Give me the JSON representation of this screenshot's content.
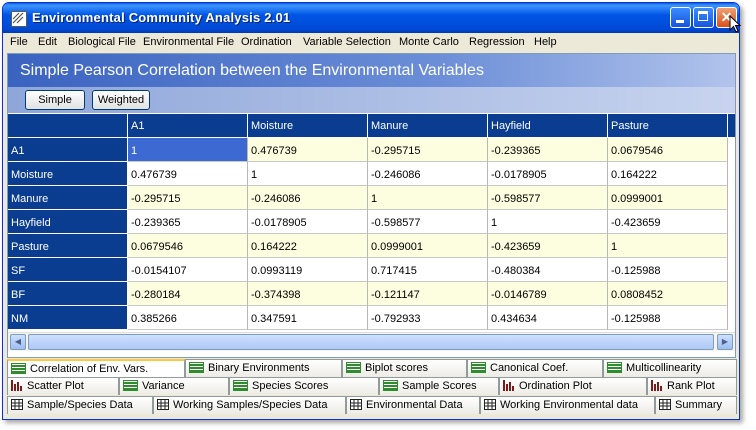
{
  "window": {
    "title": "Environmental Community Analysis 2.01"
  },
  "menu": [
    "File",
    "Edit",
    "Biological File",
    "Environmental File",
    "Ordination",
    "Variable Selection",
    "Monte Carlo",
    "Regression",
    "Help"
  ],
  "panel": {
    "title": "Simple Pearson Correlation between the Environmental Variables"
  },
  "toolbar": {
    "simple_label": "Simple",
    "weighted_label": "Weighted"
  },
  "table": {
    "columns": [
      "A1",
      "Moisture",
      "Manure",
      "Hayfield",
      "Pasture"
    ],
    "rows": [
      {
        "label": "A1",
        "values": [
          "1",
          "0.476739",
          "-0.295715",
          "-0.239365",
          "0.0679546"
        ]
      },
      {
        "label": "Moisture",
        "values": [
          "0.476739",
          "1",
          "-0.246086",
          "-0.0178905",
          "0.164222"
        ]
      },
      {
        "label": "Manure",
        "values": [
          "-0.295715",
          "-0.246086",
          "1",
          "-0.598577",
          "0.0999001"
        ]
      },
      {
        "label": "Hayfield",
        "values": [
          "-0.239365",
          "-0.0178905",
          "-0.598577",
          "1",
          "-0.423659"
        ]
      },
      {
        "label": "Pasture",
        "values": [
          "0.0679546",
          "0.164222",
          "0.0999001",
          "-0.423659",
          "1"
        ]
      },
      {
        "label": "SF",
        "values": [
          "-0.0154107",
          "0.0993119",
          "0.717415",
          "-0.480384",
          "-0.125988"
        ]
      },
      {
        "label": "BF",
        "values": [
          "-0.280184",
          "-0.374398",
          "-0.121147",
          "-0.0146789",
          "0.0808452"
        ]
      },
      {
        "label": "NM",
        "values": [
          "0.385266",
          "0.347591",
          "-0.792933",
          "0.434634",
          "-0.125988"
        ]
      }
    ]
  },
  "tabs": {
    "row1": [
      {
        "label": "Correlation of Env. Vars.",
        "icon": "lines-icon",
        "active": true
      },
      {
        "label": "Binary Environments",
        "icon": "lines-icon"
      },
      {
        "label": "Biplot scores",
        "icon": "lines-icon"
      },
      {
        "label": "Canonical Coef.",
        "icon": "lines-icon"
      },
      {
        "label": "Multicollinearity",
        "icon": "lines-icon"
      }
    ],
    "row2": [
      {
        "label": "Scatter Plot",
        "icon": "bar-chart-icon"
      },
      {
        "label": "Variance",
        "icon": "lines-icon"
      },
      {
        "label": "Species Scores",
        "icon": "lines-icon"
      },
      {
        "label": "Sample Scores",
        "icon": "lines-icon"
      },
      {
        "label": "Ordination Plot",
        "icon": "bar-chart-icon"
      },
      {
        "label": "Rank Plot",
        "icon": "bar-chart-icon"
      }
    ],
    "row3": [
      {
        "label": "Sample/Species Data",
        "icon": "table-icon"
      },
      {
        "label": "Working Samples/Species Data",
        "icon": "table-icon"
      },
      {
        "label": "Environmental Data",
        "icon": "table-icon"
      },
      {
        "label": "Working Environmental data",
        "icon": "table-icon"
      },
      {
        "label": "Summary",
        "icon": "table-icon"
      }
    ]
  },
  "colors": {
    "header_blue": "#0a3d8f",
    "selected": "#3d6ad2",
    "alt_row": "#fdfde0",
    "active_tab": "#ffc73c"
  }
}
